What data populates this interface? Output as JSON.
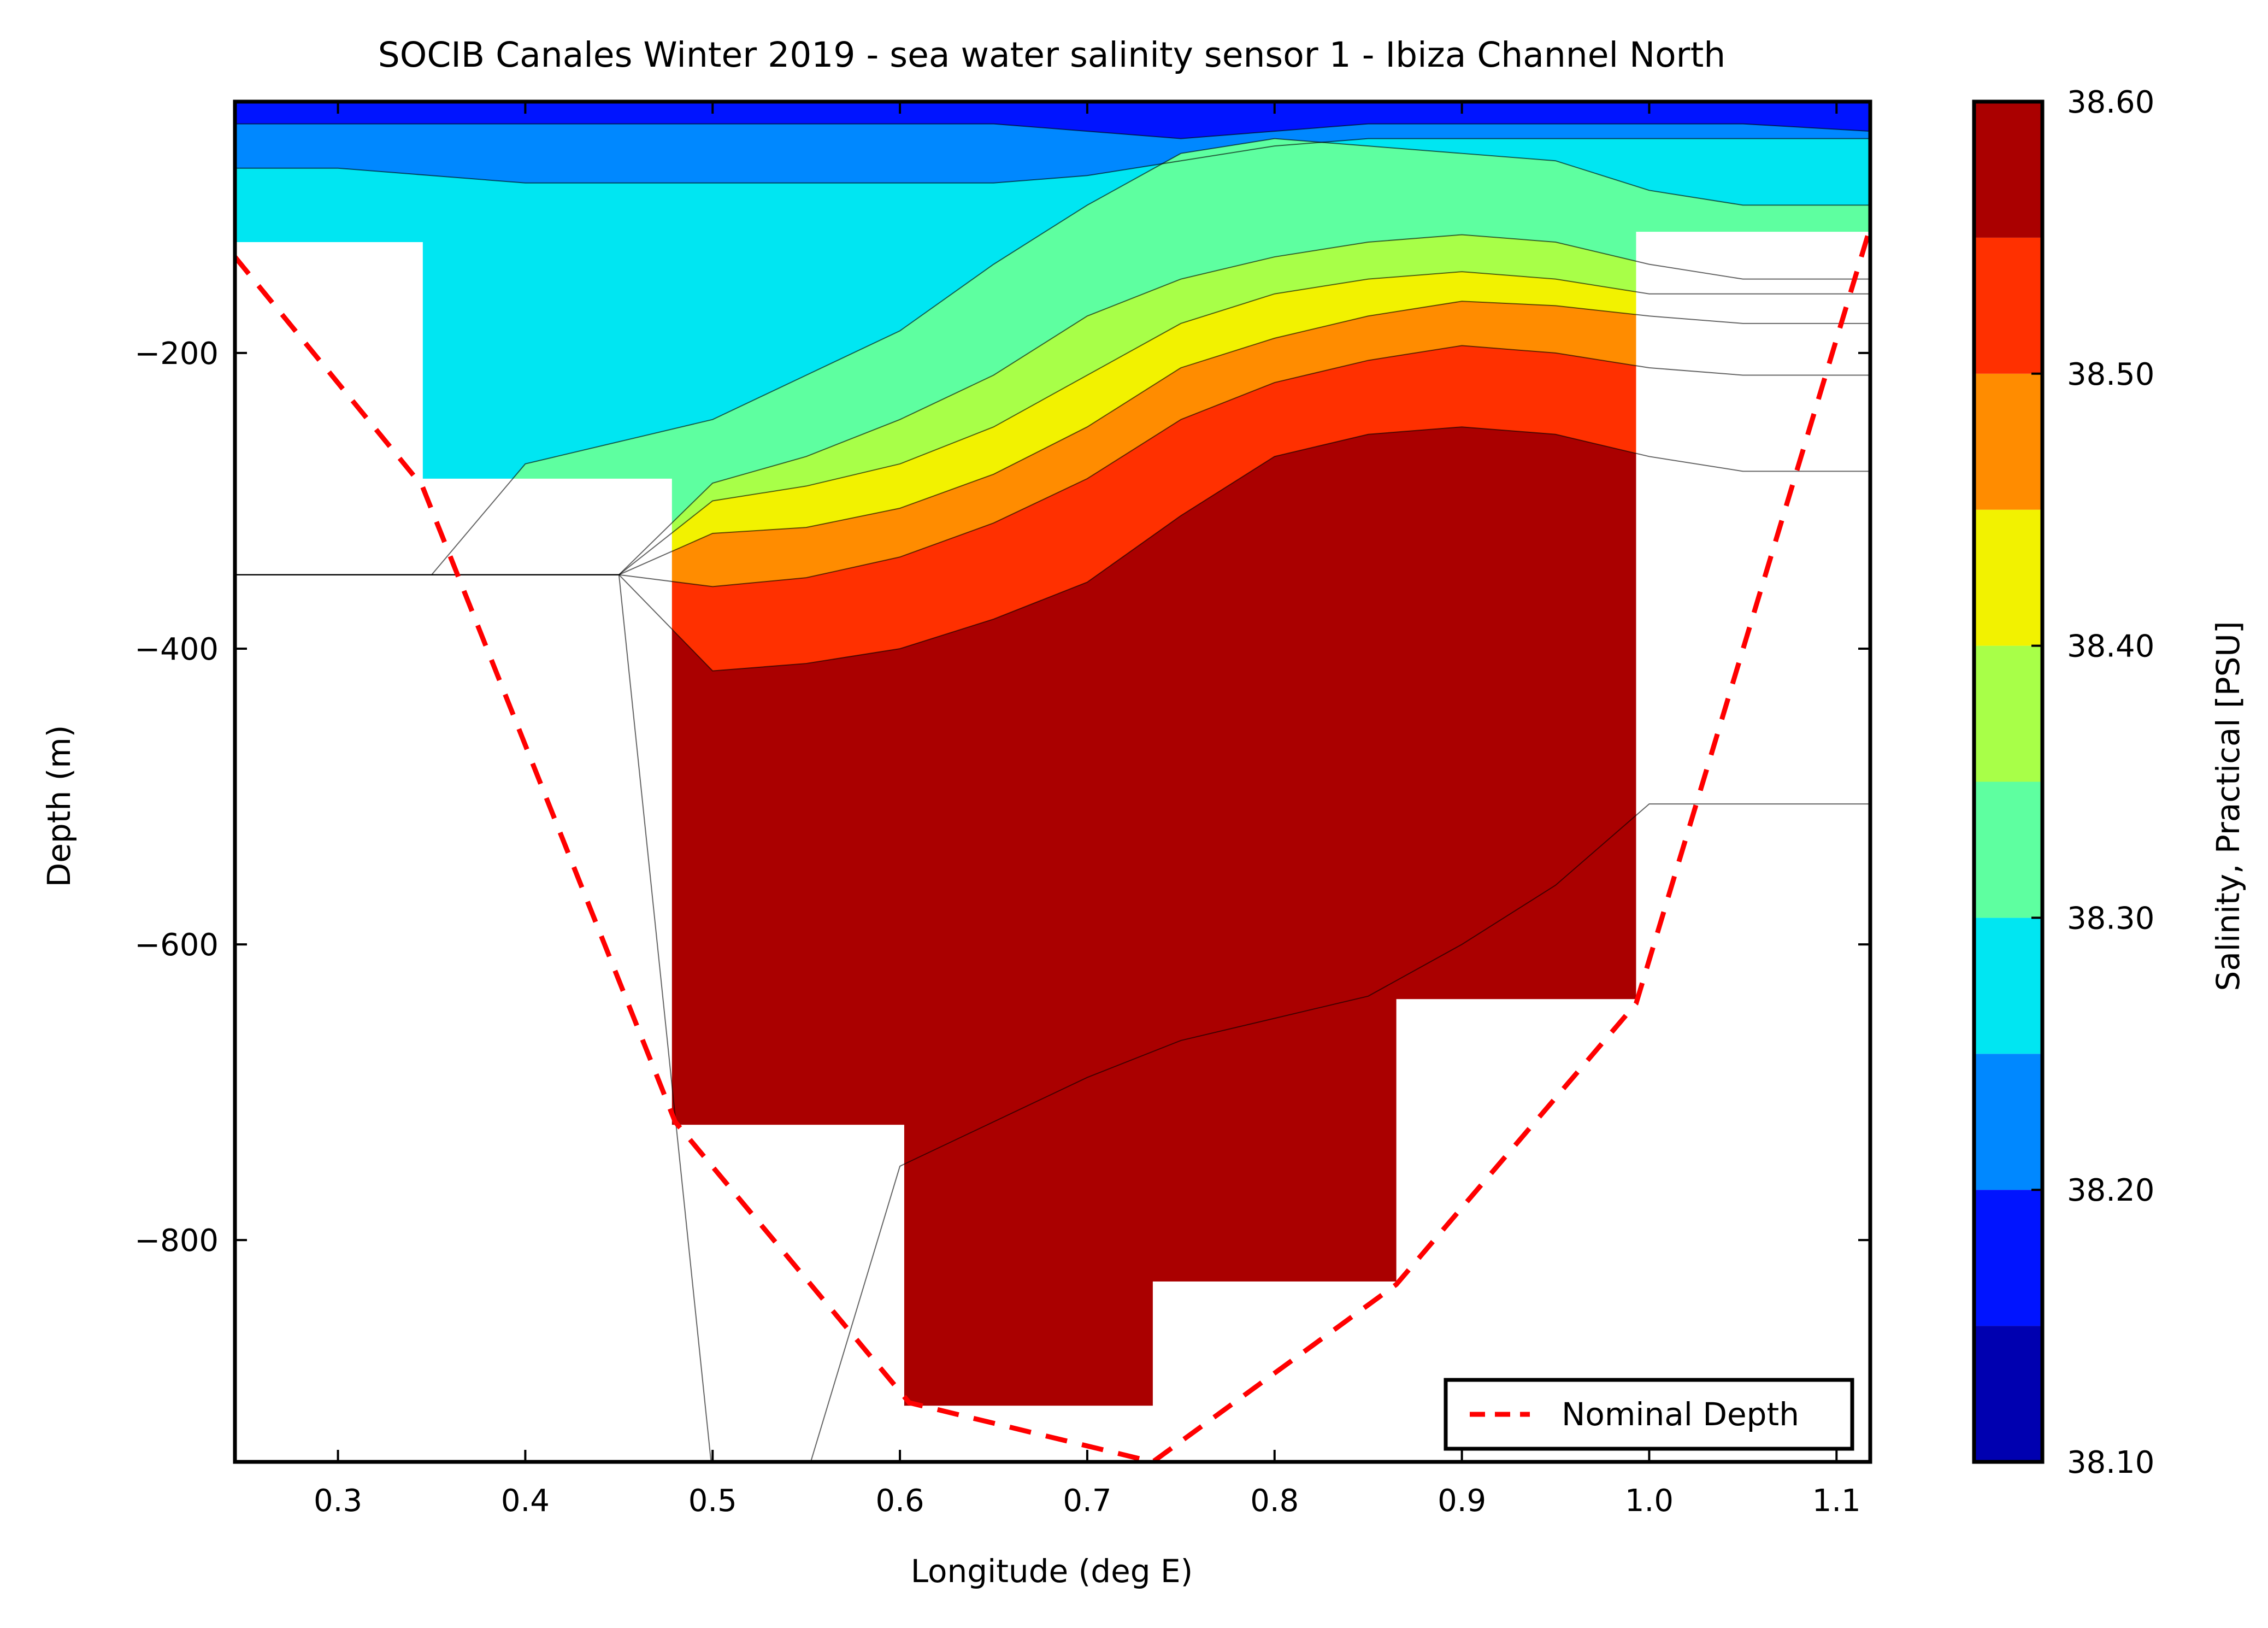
{
  "chart_data": {
    "type": "contour",
    "title": "SOCIB Canales Winter 2019 - sea water salinity sensor 1  -  Ibiza Channel North",
    "xlabel": "Longitude (deg E)",
    "ylabel": "Depth (m)",
    "xlim": [
      0.245,
      1.118
    ],
    "ylim": [
      -950,
      -30
    ],
    "xticks": [
      0.3,
      0.4,
      0.5,
      0.6,
      0.7,
      0.8,
      0.9,
      1.0,
      1.1
    ],
    "xtick_labels": [
      "0.3",
      "0.4",
      "0.5",
      "0.6",
      "0.7",
      "0.8",
      "0.9",
      "1.0",
      "1.1"
    ],
    "yticks": [
      -200,
      -400,
      -600,
      -800
    ],
    "ytick_labels": [
      "−200",
      "−400",
      "−600",
      "−800"
    ],
    "colorbar": {
      "label": "Salinity, Practical [PSU]",
      "range": [
        38.1,
        38.6
      ],
      "levels": [
        38.1,
        38.15,
        38.2,
        38.25,
        38.3,
        38.35,
        38.4,
        38.45,
        38.5,
        38.55,
        38.6
      ],
      "tick_values": [
        38.1,
        38.2,
        38.3,
        38.4,
        38.5,
        38.6
      ],
      "tick_labels": [
        "38.10",
        "38.20",
        "38.30",
        "38.40",
        "38.50",
        "38.60"
      ],
      "colors": [
        "#0000b0",
        "#0014ff",
        "#0088ff",
        "#00e6f2",
        "#5effa0",
        "#a8ff48",
        "#f2f200",
        "#ff8c00",
        "#ff3000",
        "#aa0000"
      ]
    },
    "series": [
      {
        "name": "Nominal Depth",
        "type": "line",
        "style": "dashed",
        "color": "#ff0000",
        "x": [
          0.245,
          0.345,
          0.48,
          0.605,
          0.735,
          0.865,
          0.993,
          1.118
        ],
        "y": [
          -135,
          -290,
          -720,
          -910,
          -950,
          -830,
          -640,
          -115
        ]
      }
    ],
    "sections": [
      {
        "x0": 0.245,
        "x1": 0.345,
        "bottom": -125
      },
      {
        "x0": 0.345,
        "x1": 0.478,
        "bottom": -285
      },
      {
        "x0": 0.478,
        "x1": 0.602,
        "bottom": -722
      },
      {
        "x0": 0.602,
        "x1": 0.735,
        "bottom": -912
      },
      {
        "x0": 0.735,
        "x1": 0.865,
        "bottom": -828
      },
      {
        "x0": 0.865,
        "x1": 0.993,
        "bottom": -637
      },
      {
        "x0": 0.993,
        "x1": 1.118,
        "bottom": -118
      }
    ],
    "isolines": {
      "x": [
        0.245,
        0.3,
        0.35,
        0.4,
        0.45,
        0.5,
        0.55,
        0.6,
        0.65,
        0.7,
        0.75,
        0.8,
        0.85,
        0.9,
        0.95,
        1.0,
        1.05,
        1.118
      ],
      "lines": [
        {
          "level": 38.2,
          "y": [
            -45,
            -45,
            -45,
            -45,
            -45,
            -45,
            -45,
            -45,
            -45,
            -50,
            -55,
            -50,
            -45,
            -45,
            -45,
            -45,
            -45,
            -50
          ]
        },
        {
          "level": 38.25,
          "y": [
            -75,
            -75,
            -80,
            -85,
            -85,
            -85,
            -85,
            -85,
            -85,
            -80,
            -70,
            -60,
            -55,
            -55,
            -55,
            -55,
            -55,
            -55
          ]
        },
        {
          "level": 38.3,
          "y": [
            -350,
            -350,
            -350,
            -275,
            -260,
            -245,
            -215,
            -185,
            -140,
            -100,
            -65,
            -55,
            -60,
            -65,
            -70,
            -90,
            -100,
            -100
          ]
        },
        {
          "level": 38.35,
          "y": [
            -350,
            -350,
            -350,
            -350,
            -350,
            -288,
            -270,
            -245,
            -215,
            -175,
            -150,
            -135,
            -125,
            -120,
            -125,
            -140,
            -150,
            -150
          ]
        },
        {
          "level": 38.4,
          "y": [
            -350,
            -350,
            -350,
            -350,
            -350,
            -300,
            -290,
            -275,
            -250,
            -215,
            -180,
            -160,
            -150,
            -145,
            -150,
            -160,
            -160,
            -160
          ]
        },
        {
          "level": 38.45,
          "y": [
            -350,
            -350,
            -350,
            -350,
            -350,
            -322,
            -318,
            -305,
            -282,
            -250,
            -210,
            -190,
            -175,
            -165,
            -168,
            -175,
            -180,
            -180
          ]
        },
        {
          "level": 38.5,
          "y": [
            -350,
            -350,
            -350,
            -350,
            -350,
            -358,
            -352,
            -338,
            -315,
            -285,
            -245,
            -220,
            -205,
            -195,
            -200,
            -210,
            -215,
            -215
          ]
        },
        {
          "level": 38.55,
          "y": [
            -350,
            -350,
            -350,
            -350,
            -350,
            -415,
            -410,
            -400,
            -380,
            -355,
            -310,
            -270,
            -255,
            -250,
            -255,
            -270,
            -280,
            -280
          ]
        },
        {
          "level": 38.6,
          "y": [
            -350,
            -350,
            -350,
            -350,
            -350,
            -960,
            -960,
            -750,
            -720,
            -690,
            -665,
            -650,
            -635,
            -600,
            -560,
            -505,
            -505,
            -505
          ]
        }
      ]
    }
  }
}
